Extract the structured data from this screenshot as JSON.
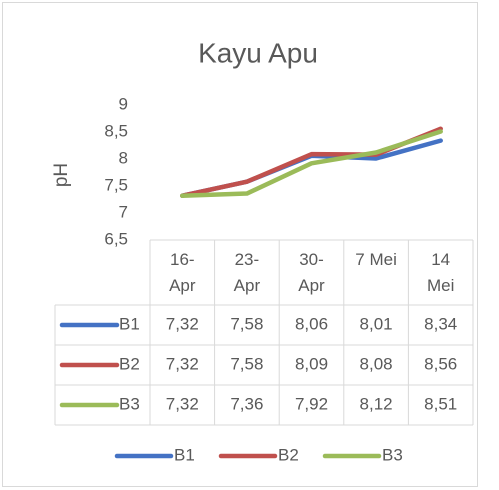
{
  "chart_data": {
    "type": "line",
    "title": "Kayu Apu",
    "y_label": "pH",
    "categories": [
      "16-Apr",
      "23-Apr",
      "30-Apr",
      "7 Mei",
      "14 Mei"
    ],
    "series": [
      {
        "name": "B1",
        "color": "#4472c4",
        "values": [
          7.32,
          7.58,
          8.06,
          8.01,
          8.34
        ],
        "value_labels": [
          "7,32",
          "7,58",
          "8,06",
          "8,01",
          "8,34"
        ]
      },
      {
        "name": "B2",
        "color": "#c0504d",
        "values": [
          7.32,
          7.58,
          8.09,
          8.08,
          8.56
        ],
        "value_labels": [
          "7,32",
          "7,58",
          "8,09",
          "8,08",
          "8,56"
        ]
      },
      {
        "name": "B3",
        "color": "#9bbb59",
        "values": [
          7.32,
          7.36,
          7.92,
          8.12,
          8.51
        ],
        "value_labels": [
          "7,32",
          "7,36",
          "7,92",
          "8,12",
          "8,51"
        ]
      }
    ],
    "ylim": [
      6.5,
      9
    ],
    "yticks": [
      {
        "value": 6.5,
        "label": "6,5"
      },
      7,
      {
        "value": 7.5,
        "label": "7,5"
      },
      8,
      {
        "value": 8.5,
        "label": "8,5"
      },
      9
    ],
    "grid": false,
    "data_table": true,
    "legend": "bottom"
  }
}
